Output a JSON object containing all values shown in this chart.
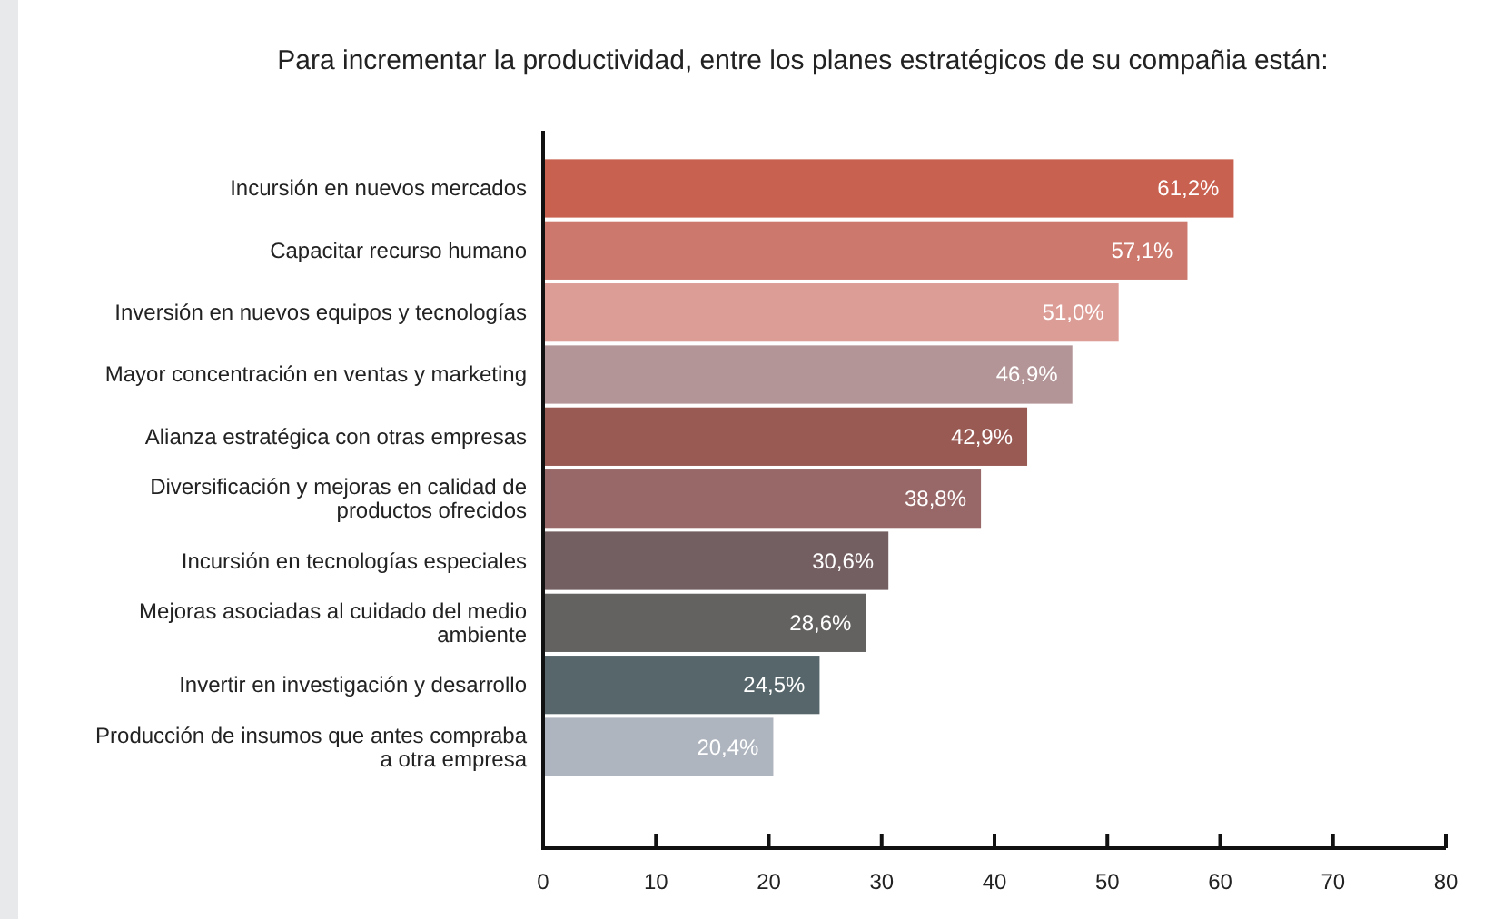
{
  "chart_data": {
    "type": "bar",
    "orientation": "horizontal",
    "title": "Para incrementar la productividad, entre los planes estratégicos de su compañia están:",
    "categories": [
      "Incursión en nuevos mercados",
      "Capacitar recurso humano",
      "Inversión en nuevos equipos y tecnologías",
      "Mayor concentración en ventas y marketing",
      "Alianza estratégica con otras empresas",
      "Diversificación y mejoras en calidad de productos ofrecidos",
      "Incursión en tecnologías especiales",
      "Mejoras asociadas al cuidado del medio ambiente",
      "Invertir en investigación y desarrollo",
      "Producción de insumos que antes compraba a otra empresa"
    ],
    "values": [
      61.2,
      57.1,
      51.0,
      46.9,
      42.9,
      38.8,
      30.6,
      28.6,
      24.5,
      20.4
    ],
    "value_labels": [
      "61,2%",
      "57,1%",
      "51,0%",
      "46,9%",
      "42,9%",
      "38,8%",
      "30,6%",
      "28,6%",
      "24,5%",
      "20,4%"
    ],
    "colors": [
      "#c86150",
      "#cc786d",
      "#dd9d97",
      "#b49597",
      "#985a53",
      "#976867",
      "#735f61",
      "#636260",
      "#56666a",
      "#aeb5bf"
    ],
    "xlim": [
      0,
      80
    ],
    "xticks": [
      0,
      10,
      20,
      30,
      40,
      50,
      60,
      70,
      80
    ],
    "grid": false
  }
}
